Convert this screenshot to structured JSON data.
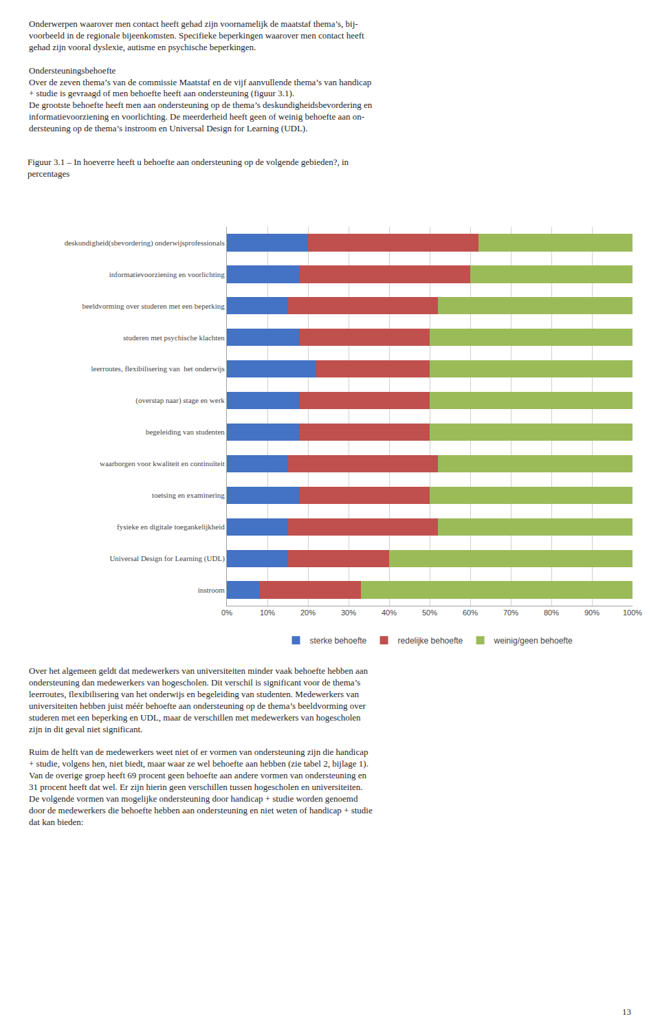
{
  "chart_data": {
    "type": "bar",
    "orientation": "horizontal",
    "stacked": true,
    "title": "Figuur 3.1 – In hoeverre heeft u behoefte aan ondersteuning op de volgende gebieden?, in\npercentages",
    "categories": [
      "deskundigheid(sbevordering) onderwijsprofessionals",
      "informatievoorziening en voorlichting",
      "beeldvorming over studeren met een beperking",
      "studeren met psychische klachten",
      "leerroutes, flexibilisering van  het onderwijs",
      "(overstap naar) stage en werk",
      "begeleiding van studenten",
      "waarborgen voor kwaliteit en continuïteit",
      "toetsing en examinering",
      "fysieke en digitale toegankelijkheid",
      "Universal Design for Learning (UDL)",
      "instroom"
    ],
    "series": [
      {
        "name": "sterke behoefte",
        "color": "#4472C4",
        "values": [
          20,
          18,
          15,
          18,
          22,
          18,
          18,
          15,
          18,
          15,
          15,
          8
        ]
      },
      {
        "name": "redelijke behoefte",
        "color": "#C0504D",
        "values": [
          42,
          42,
          37,
          32,
          28,
          32,
          32,
          37,
          32,
          37,
          25,
          25
        ]
      },
      {
        "name": "weinig/geen behoefte",
        "color": "#9BBB59",
        "values": [
          38,
          40,
          48,
          50,
          50,
          50,
          50,
          48,
          50,
          48,
          60,
          67
        ]
      }
    ],
    "xlim": [
      0,
      100
    ],
    "xticks": [
      {
        "value": 0,
        "label": "0%"
      },
      {
        "value": 10,
        "label": "10%"
      },
      {
        "value": 20,
        "label": "20%"
      },
      {
        "value": 30,
        "label": "30%"
      },
      {
        "value": 40,
        "label": "40%"
      },
      {
        "value": 50,
        "label": "50%"
      },
      {
        "value": 60,
        "label": "60%"
      },
      {
        "value": 70,
        "label": "70%"
      },
      {
        "value": 80,
        "label": "80%"
      },
      {
        "value": 90,
        "label": "90%"
      },
      {
        "value": 100,
        "label": "100%"
      }
    ],
    "grid": true,
    "legend": "bottom",
    "annotations": [
      "Onderwerpen waarover men contact heeft gehad zijn voornamelijk de maatstaf thema’s, bij-\nvoorbeeld in de regionale bijeenkomsten. Specifieke beperkingen waarover men contact heeft\ngehad zijn vooral dyslexie, autisme en psychische beperkingen.\n\nOndersteuningsbehoefte\nOver de zeven thema’s van de commissie Maatstaf en de vijf aanvullende thema’s van handicap\n+ studie is gevraagd of men behoefte heeft aan ondersteuning (figuur 3.1).\nDe grootste behoefte heeft men aan ondersteuning op de thema’s deskundigheidsbevordering en\ninformatievoorziening en voorlichting. De meerderheid heeft geen of weinig behoefte aan on-\ndersteuning op de thema’s instroom en Universal Design for Learning (UDL).",
      "Over het algemeen geldt dat medewerkers van universiteiten minder vaak behoefte hebben aan\nondersteuning dan medewerkers van hogescholen. Dit verschil is significant voor de thema’s\nleerroutes, flexibilisering van het onderwijs en begeleiding van studenten. Medewerkers van\nuniversiteiten hebben juist méér behoefte aan ondersteuning op de thema’s beeldvorming over\nstuderen met een beperking en UDL, maar de verschillen met medewerkers van hogescholen\nzijn in dit geval niet significant.\n\nRuim de helft van de medewerkers weet niet of er vormen van ondersteuning zijn die handicap\n+ studie, volgens hen, niet biedt, maar waar ze wel behoefte aan hebben (zie tabel 2, bijlage 1).\nVan de overige groep heeft 69 procent geen behoefte aan andere vormen van ondersteuning en\n31 procent heeft dat wel. Er zijn hierin geen verschillen tussen hogescholen en universiteiten.\nDe volgende vormen van mogelijke ondersteuning door handicap + studie worden genoemd\ndoor de medewerkers die behoefte hebben aan ondersteuning en niet weten of handicap + studie\ndat kan bieden:",
      "13"
    ]
  }
}
